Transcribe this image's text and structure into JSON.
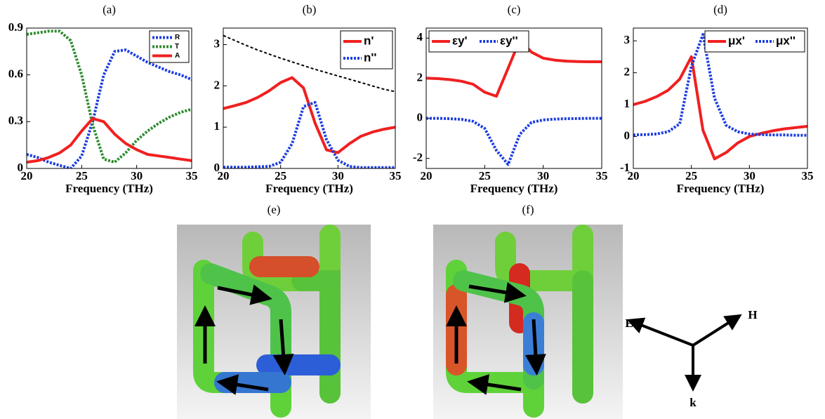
{
  "chart_data": [
    {
      "type": "line",
      "title": "(a)",
      "xlabel": "Frequency (THz)",
      "x": [
        20,
        21,
        22,
        23,
        24,
        25,
        26,
        27,
        28,
        29,
        30,
        31,
        32,
        33,
        34,
        35
      ],
      "xlim": [
        20,
        35
      ],
      "xticks": [
        20,
        25,
        30,
        35
      ],
      "ylim": [
        0,
        0.9
      ],
      "yticks": [
        0,
        0.3,
        0.6,
        0.9
      ],
      "legend": "upper right",
      "legend_columns": 1,
      "series": [
        {
          "name": "R",
          "color": "#1e3ee0",
          "style": "dotted",
          "values": [
            0.09,
            0.07,
            0.04,
            0.02,
            0.0,
            0.08,
            0.3,
            0.6,
            0.75,
            0.76,
            0.72,
            0.68,
            0.65,
            0.62,
            0.6,
            0.57
          ]
        },
        {
          "name": "T",
          "color": "#2e8b2e",
          "style": "dotted",
          "values": [
            0.86,
            0.87,
            0.88,
            0.88,
            0.82,
            0.6,
            0.28,
            0.06,
            0.04,
            0.1,
            0.18,
            0.24,
            0.29,
            0.33,
            0.36,
            0.38
          ]
        },
        {
          "name": "A",
          "color": "#f02020",
          "style": "solid",
          "values": [
            0.04,
            0.05,
            0.07,
            0.1,
            0.15,
            0.24,
            0.32,
            0.3,
            0.22,
            0.16,
            0.12,
            0.09,
            0.08,
            0.07,
            0.06,
            0.05
          ]
        }
      ]
    },
    {
      "type": "line",
      "title": "(b)",
      "xlabel": "Frequency (THz)",
      "x": [
        20,
        21,
        22,
        23,
        24,
        25,
        26,
        27,
        28,
        29,
        30,
        31,
        32,
        33,
        34,
        35
      ],
      "xlim": [
        20,
        35
      ],
      "xticks": [
        20,
        25,
        30,
        35
      ],
      "ylim": [
        0,
        3.4
      ],
      "yticks": [
        0,
        1,
        2,
        3
      ],
      "legend": "upper right",
      "legend_columns": 1,
      "series": [
        {
          "name": "n'",
          "color": "#f02020",
          "style": "solid",
          "values": [
            1.45,
            1.52,
            1.6,
            1.72,
            1.88,
            2.08,
            2.2,
            1.95,
            1.1,
            0.45,
            0.38,
            0.6,
            0.78,
            0.88,
            0.95,
            1.0
          ]
        },
        {
          "name": "n''",
          "color": "#1e3ee0",
          "style": "dotted",
          "values": [
            0.03,
            0.03,
            0.03,
            0.04,
            0.05,
            0.15,
            0.6,
            1.5,
            1.6,
            0.7,
            0.2,
            0.05,
            0.02,
            0.02,
            0.02,
            0.02
          ]
        },
        {
          "color": "#000000",
          "style": "dashed",
          "values": [
            3.22,
            3.1,
            2.98,
            2.87,
            2.77,
            2.67,
            2.58,
            2.49,
            2.4,
            2.32,
            2.24,
            2.16,
            2.08,
            2.0,
            1.92,
            1.86
          ]
        }
      ]
    },
    {
      "type": "line",
      "title": "(c)",
      "xlabel": "Frequency (THz)",
      "x": [
        20,
        21,
        22,
        23,
        24,
        25,
        26,
        27,
        28,
        29,
        30,
        31,
        32,
        33,
        34,
        35
      ],
      "xlim": [
        20,
        35
      ],
      "xticks": [
        20,
        25,
        30,
        35
      ],
      "ylim": [
        -2.5,
        4.5
      ],
      "yticks": [
        -2,
        0,
        2,
        4
      ],
      "legend": "upper left",
      "legend_columns": 2,
      "series": [
        {
          "name": "εy'",
          "color": "#f02020",
          "style": "solid",
          "values": [
            2.0,
            1.98,
            1.93,
            1.85,
            1.7,
            1.3,
            1.1,
            2.5,
            3.9,
            3.3,
            3.0,
            2.9,
            2.85,
            2.83,
            2.82,
            2.82
          ]
        },
        {
          "name": "εy''",
          "color": "#1e3ee0",
          "style": "dotted",
          "values": [
            0,
            0,
            -0.02,
            -0.05,
            -0.15,
            -0.5,
            -1.6,
            -2.3,
            -0.8,
            -0.2,
            -0.08,
            -0.04,
            -0.02,
            -0.01,
            0,
            0
          ]
        }
      ]
    },
    {
      "type": "line",
      "title": "(d)",
      "xlabel": "Frequency (THz)",
      "x": [
        20,
        21,
        22,
        23,
        24,
        25,
        26,
        27,
        28,
        29,
        30,
        31,
        32,
        33,
        34,
        35
      ],
      "xlim": [
        20,
        35
      ],
      "xticks": [
        20,
        25,
        30,
        35
      ],
      "ylim": [
        -1,
        3.4
      ],
      "yticks": [
        -1,
        0,
        1,
        2,
        3
      ],
      "legend": "upper right",
      "legend_columns": 2,
      "series": [
        {
          "name": "μx'",
          "color": "#f02020",
          "style": "solid",
          "values": [
            1.0,
            1.1,
            1.25,
            1.45,
            1.8,
            2.5,
            0.2,
            -0.7,
            -0.5,
            -0.2,
            0,
            0.1,
            0.18,
            0.24,
            0.28,
            0.32
          ]
        },
        {
          "name": "μx''",
          "color": "#1e3ee0",
          "style": "dotted",
          "values": [
            0.05,
            0.06,
            0.08,
            0.15,
            0.4,
            2.2,
            3.2,
            1.2,
            0.35,
            0.15,
            0.08,
            0.06,
            0.05,
            0.05,
            0.04,
            0.04
          ]
        }
      ]
    }
  ],
  "images": [
    {
      "label": "(e)"
    },
    {
      "label": "(f)"
    }
  ],
  "axes_diagram": {
    "labels": [
      "E",
      "H",
      "k"
    ]
  }
}
